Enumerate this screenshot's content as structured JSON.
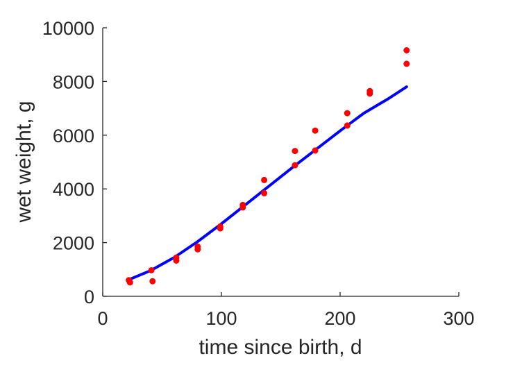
{
  "chart_data": {
    "type": "scatter",
    "xlabel": "time since birth, d",
    "ylabel": "wet weight, g",
    "xlim": [
      0,
      300
    ],
    "ylim": [
      0,
      10000
    ],
    "xticks": [
      0,
      100,
      200,
      300
    ],
    "yticks": [
      0,
      2000,
      4000,
      6000,
      8000,
      10000
    ],
    "grid": false,
    "box": false,
    "series": [
      {
        "kind": "points",
        "color": "#ff0000",
        "points": [
          [
            22,
            600
          ],
          [
            23,
            520
          ],
          [
            41,
            970
          ],
          [
            42,
            560
          ],
          [
            62,
            1440
          ],
          [
            62,
            1330
          ],
          [
            80,
            1850
          ],
          [
            80,
            1750
          ],
          [
            99,
            2600
          ],
          [
            99,
            2530
          ],
          [
            118,
            3400
          ],
          [
            118,
            3310
          ],
          [
            136,
            4330
          ],
          [
            136,
            3840
          ],
          [
            162,
            5410
          ],
          [
            162,
            4880
          ],
          [
            179,
            6170
          ],
          [
            179,
            5430
          ],
          [
            206,
            6820
          ],
          [
            206,
            6360
          ],
          [
            225,
            7640
          ],
          [
            225,
            7550
          ],
          [
            256,
            9160
          ],
          [
            256,
            8660
          ]
        ]
      },
      {
        "kind": "line",
        "color": "#0000ff",
        "points": [
          [
            22,
            620
          ],
          [
            40,
            950
          ],
          [
            60,
            1440
          ],
          [
            80,
            2040
          ],
          [
            100,
            2700
          ],
          [
            120,
            3400
          ],
          [
            140,
            4100
          ],
          [
            160,
            4800
          ],
          [
            180,
            5480
          ],
          [
            200,
            6160
          ],
          [
            220,
            6820
          ],
          [
            240,
            7340
          ],
          [
            256,
            7800
          ]
        ]
      }
    ]
  }
}
